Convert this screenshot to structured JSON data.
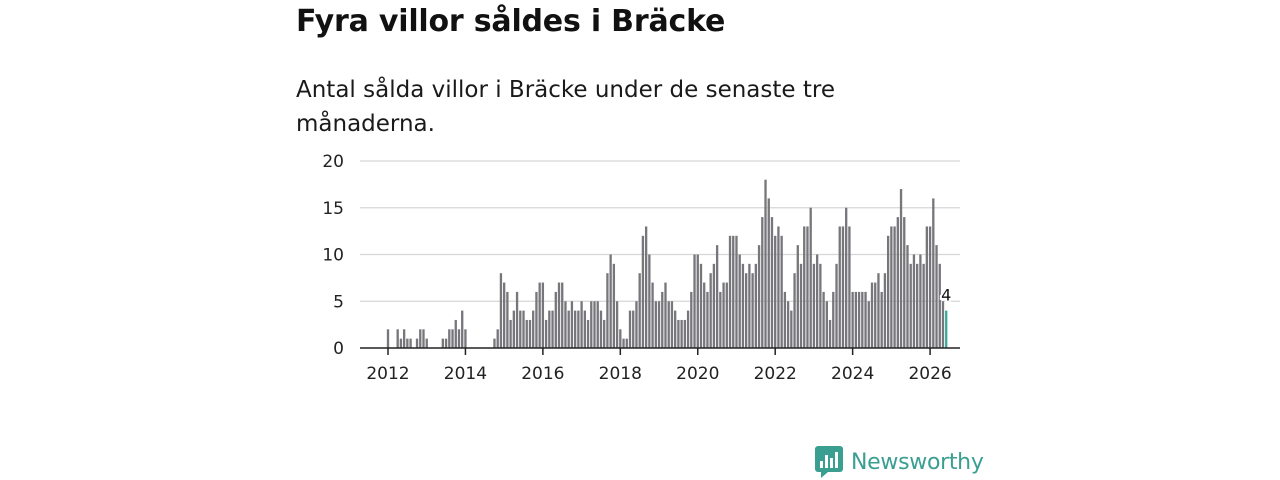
{
  "title": "Fyra villor såldes i Bräcke",
  "subtitle": "Antal sålda villor i Bräcke under de senaste tre månaderna.",
  "brand": {
    "name": "Newsworthy",
    "icon": "newsworthy-logo-icon",
    "color": "#3a9e91"
  },
  "colors": {
    "bar": "#77767b",
    "highlight": "#3aa99a",
    "grid": "#d6d6d6",
    "axis": "#222222"
  },
  "chart_data": {
    "type": "bar",
    "title": "Fyra villor såldes i Bräcke",
    "xlabel": "",
    "ylabel": "",
    "ylim": [
      0,
      20
    ],
    "yticks": [
      0,
      5,
      10,
      15,
      20
    ],
    "xticks": [
      "2012",
      "2014",
      "2016",
      "2018",
      "2020",
      "2022",
      "2024",
      "2026"
    ],
    "grid": true,
    "start": "2012-01",
    "interval": "month",
    "values": [
      2,
      0,
      0,
      2,
      1,
      2,
      1,
      1,
      0,
      1,
      2,
      2,
      1,
      0,
      0,
      0,
      0,
      1,
      1,
      2,
      2,
      3,
      2,
      4,
      2,
      0,
      0,
      0,
      0,
      0,
      0,
      0,
      0,
      1,
      2,
      8,
      7,
      6,
      3,
      4,
      6,
      4,
      4,
      3,
      3,
      4,
      6,
      7,
      7,
      3,
      4,
      4,
      6,
      7,
      7,
      5,
      4,
      5,
      4,
      4,
      5,
      4,
      3,
      5,
      5,
      5,
      4,
      3,
      8,
      10,
      9,
      5,
      2,
      1,
      1,
      4,
      4,
      5,
      8,
      12,
      13,
      10,
      7,
      5,
      5,
      6,
      7,
      5,
      5,
      4,
      3,
      3,
      3,
      4,
      6,
      10,
      10,
      9,
      7,
      6,
      8,
      9,
      11,
      6,
      7,
      7,
      12,
      12,
      12,
      10,
      9,
      8,
      9,
      8,
      9,
      11,
      14,
      18,
      16,
      14,
      12,
      13,
      12,
      6,
      5,
      4,
      8,
      11,
      9,
      13,
      13,
      15,
      9,
      10,
      9,
      6,
      5,
      3,
      6,
      9,
      13,
      13,
      15,
      13,
      6,
      6,
      6,
      6,
      6,
      5,
      7,
      7,
      8,
      6,
      8,
      12,
      13,
      13,
      14,
      17,
      14,
      11,
      9,
      10,
      9,
      10,
      9,
      13,
      13,
      16,
      11,
      9,
      5,
      4
    ],
    "highlight_last": true,
    "highlight_label": "4"
  }
}
